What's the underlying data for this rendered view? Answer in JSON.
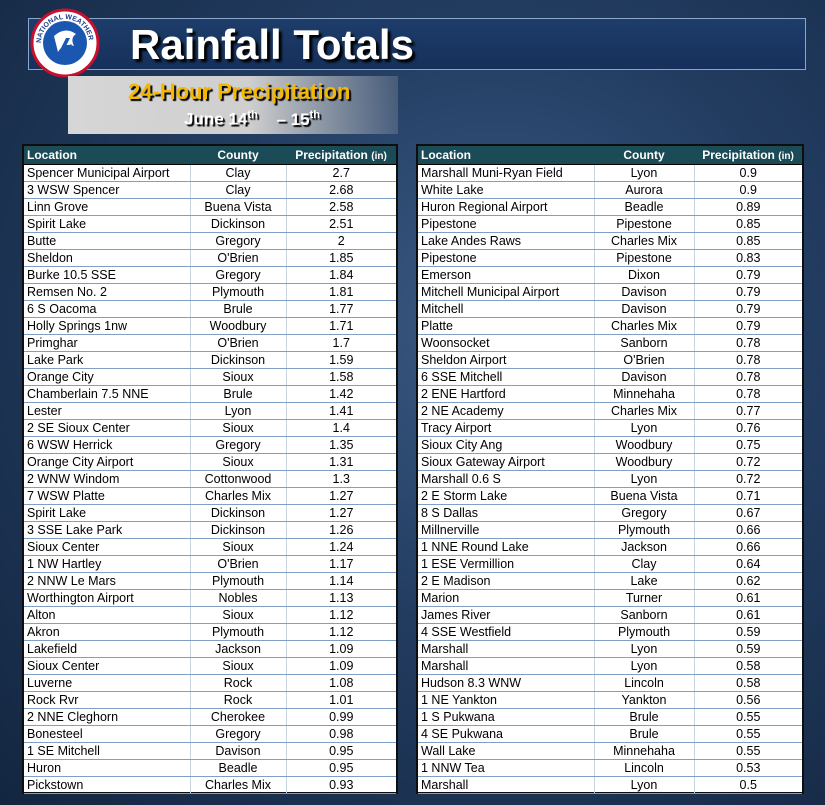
{
  "header": {
    "title": "Rainfall Totals",
    "subtitle": "24-Hour Precipitation",
    "dates": {
      "start_day": "June 14",
      "start_suffix": "th",
      "separator": "– 15",
      "end_suffix": "th"
    },
    "logo_text": "NATIONAL WEATHER SERVICE"
  },
  "columns": {
    "location": "Location",
    "county": "County",
    "precipitation": "Precipitation",
    "unit": "(in)"
  },
  "left_table": [
    {
      "location": "Spencer Municipal Airport",
      "county": "Clay",
      "precip": "2.7"
    },
    {
      "location": "3 WSW Spencer",
      "county": "Clay",
      "precip": "2.68"
    },
    {
      "location": "Linn Grove",
      "county": "Buena Vista",
      "precip": "2.58"
    },
    {
      "location": "Spirit Lake",
      "county": "Dickinson",
      "precip": "2.51"
    },
    {
      "location": "Butte",
      "county": "Gregory",
      "precip": "2"
    },
    {
      "location": "Sheldon",
      "county": "O'Brien",
      "precip": "1.85"
    },
    {
      "location": "Burke 10.5 SSE",
      "county": "Gregory",
      "precip": "1.84"
    },
    {
      "location": "Remsen No. 2",
      "county": "Plymouth",
      "precip": "1.81"
    },
    {
      "location": "6 S Oacoma",
      "county": "Brule",
      "precip": "1.77"
    },
    {
      "location": "Holly Springs 1nw",
      "county": "Woodbury",
      "precip": "1.71"
    },
    {
      "location": "Primghar",
      "county": "O'Brien",
      "precip": "1.7"
    },
    {
      "location": "Lake Park",
      "county": "Dickinson",
      "precip": "1.59"
    },
    {
      "location": "Orange City",
      "county": "Sioux",
      "precip": "1.58"
    },
    {
      "location": "Chamberlain 7.5 NNE",
      "county": "Brule",
      "precip": "1.42"
    },
    {
      "location": "Lester",
      "county": "Lyon",
      "precip": "1.41"
    },
    {
      "location": "2 SE Sioux Center",
      "county": "Sioux",
      "precip": "1.4"
    },
    {
      "location": "6 WSW Herrick",
      "county": "Gregory",
      "precip": "1.35"
    },
    {
      "location": "Orange City Airport",
      "county": "Sioux",
      "precip": "1.31"
    },
    {
      "location": "2 WNW Windom",
      "county": "Cottonwood",
      "precip": "1.3"
    },
    {
      "location": "7 WSW Platte",
      "county": "Charles Mix",
      "precip": "1.27"
    },
    {
      "location": "Spirit Lake",
      "county": "Dickinson",
      "precip": "1.27"
    },
    {
      "location": "3 SSE Lake Park",
      "county": "Dickinson",
      "precip": "1.26"
    },
    {
      "location": "Sioux Center",
      "county": "Sioux",
      "precip": "1.24"
    },
    {
      "location": "1 NW Hartley",
      "county": "O'Brien",
      "precip": "1.17"
    },
    {
      "location": "2 NNW Le Mars",
      "county": "Plymouth",
      "precip": "1.14"
    },
    {
      "location": "Worthington Airport",
      "county": "Nobles",
      "precip": "1.13"
    },
    {
      "location": "Alton",
      "county": "Sioux",
      "precip": "1.12"
    },
    {
      "location": "Akron",
      "county": "Plymouth",
      "precip": "1.12"
    },
    {
      "location": "Lakefield",
      "county": "Jackson",
      "precip": "1.09"
    },
    {
      "location": "Sioux Center",
      "county": "Sioux",
      "precip": "1.09"
    },
    {
      "location": "Luverne",
      "county": "Rock",
      "precip": "1.08"
    },
    {
      "location": "Rock Rvr",
      "county": "Rock",
      "precip": "1.01"
    },
    {
      "location": "2 NNE Cleghorn",
      "county": "Cherokee",
      "precip": "0.99"
    },
    {
      "location": "Bonesteel",
      "county": "Gregory",
      "precip": "0.98"
    },
    {
      "location": "1 SE Mitchell",
      "county": "Davison",
      "precip": "0.95"
    },
    {
      "location": "Huron",
      "county": "Beadle",
      "precip": "0.95"
    },
    {
      "location": "Pickstown",
      "county": "Charles Mix",
      "precip": "0.93"
    }
  ],
  "right_table": [
    {
      "location": "Marshall Muni-Ryan Field",
      "county": "Lyon",
      "precip": "0.9"
    },
    {
      "location": "White Lake",
      "county": "Aurora",
      "precip": "0.9"
    },
    {
      "location": "Huron Regional Airport",
      "county": "Beadle",
      "precip": "0.89"
    },
    {
      "location": "Pipestone",
      "county": "Pipestone",
      "precip": "0.85"
    },
    {
      "location": "Lake Andes Raws",
      "county": "Charles Mix",
      "precip": "0.85"
    },
    {
      "location": "Pipestone",
      "county": "Pipestone",
      "precip": "0.83"
    },
    {
      "location": "Emerson",
      "county": "Dixon",
      "precip": "0.79"
    },
    {
      "location": "Mitchell Municipal Airport",
      "county": "Davison",
      "precip": "0.79"
    },
    {
      "location": "Mitchell",
      "county": "Davison",
      "precip": "0.79"
    },
    {
      "location": "Platte",
      "county": "Charles Mix",
      "precip": "0.79"
    },
    {
      "location": "Woonsocket",
      "county": "Sanborn",
      "precip": "0.78"
    },
    {
      "location": "Sheldon Airport",
      "county": "O'Brien",
      "precip": "0.78"
    },
    {
      "location": "6 SSE Mitchell",
      "county": "Davison",
      "precip": "0.78"
    },
    {
      "location": "2 ENE Hartford",
      "county": "Minnehaha",
      "precip": "0.78"
    },
    {
      "location": "2 NE Academy",
      "county": "Charles Mix",
      "precip": "0.77"
    },
    {
      "location": "Tracy Airport",
      "county": "Lyon",
      "precip": "0.76"
    },
    {
      "location": "Sioux City Ang",
      "county": "Woodbury",
      "precip": "0.75"
    },
    {
      "location": "Sioux Gateway Airport",
      "county": "Woodbury",
      "precip": "0.72"
    },
    {
      "location": "Marshall 0.6 S",
      "county": "Lyon",
      "precip": "0.72"
    },
    {
      "location": "2 E Storm Lake",
      "county": "Buena Vista",
      "precip": "0.71"
    },
    {
      "location": "8 S Dallas",
      "county": "Gregory",
      "precip": "0.67"
    },
    {
      "location": "Millnerville",
      "county": "Plymouth",
      "precip": "0.66"
    },
    {
      "location": "1 NNE Round Lake",
      "county": "Jackson",
      "precip": "0.66"
    },
    {
      "location": "1 ESE Vermillion",
      "county": "Clay",
      "precip": "0.64"
    },
    {
      "location": "2 E Madison",
      "county": "Lake",
      "precip": "0.62"
    },
    {
      "location": "Marion",
      "county": "Turner",
      "precip": "0.61"
    },
    {
      "location": "James River",
      "county": "Sanborn",
      "precip": "0.61"
    },
    {
      "location": "4 SSE Westfield",
      "county": "Plymouth",
      "precip": "0.59"
    },
    {
      "location": "Marshall",
      "county": "Lyon",
      "precip": "0.59"
    },
    {
      "location": "Marshall",
      "county": "Lyon",
      "precip": "0.58"
    },
    {
      "location": "Hudson 8.3 WNW",
      "county": "Lincoln",
      "precip": "0.58"
    },
    {
      "location": "1 NE Yankton",
      "county": "Yankton",
      "precip": "0.56"
    },
    {
      "location": "1 S Pukwana",
      "county": "Brule",
      "precip": "0.55"
    },
    {
      "location": "4 SE Pukwana",
      "county": "Brule",
      "precip": "0.55"
    },
    {
      "location": "Wall Lake",
      "county": "Minnehaha",
      "precip": "0.55"
    },
    {
      "location": "1 NNW Tea",
      "county": "Lincoln",
      "precip": "0.53"
    },
    {
      "location": "Marshall",
      "county": "Lyon",
      "precip": "0.5"
    }
  ]
}
